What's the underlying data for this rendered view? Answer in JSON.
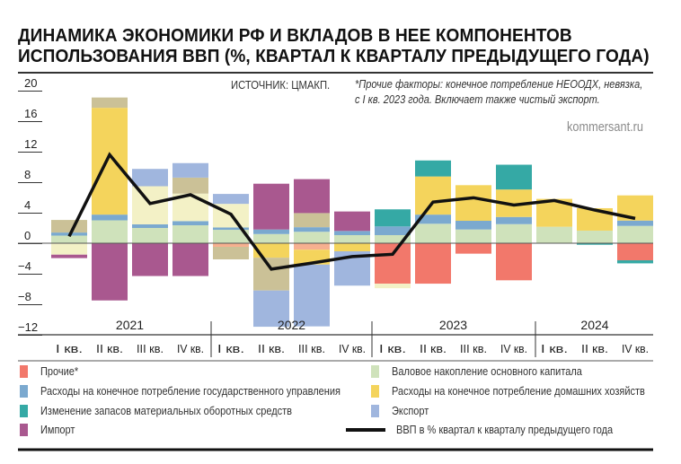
{
  "title": [
    "ДИНАМИКА ЭКОНОМИКИ РФ И ВКЛАДОВ В НЕЕ КОМПОНЕНТОВ",
    "ИСПОЛЬЗОВАНИЯ ВВП (%, КВАРТАЛ К КВАРТАЛУ ПРЕДЫДУЩЕГО ГОДА)"
  ],
  "source": "ИСТОЧНИК: ЦМАКП.",
  "note": [
    "*Прочие факторы: конечное потребление НЕООДХ, невязка,",
    "с I кв. 2023 года. Включает также чистый экспорт."
  ],
  "brand": "kommersant.ru",
  "chart_data": {
    "type": "bar",
    "stacked": true,
    "ylim": [
      -12,
      20
    ],
    "yticks": [
      "20",
      "16",
      "12",
      "8",
      "4",
      "0",
      "−4",
      "−8",
      "−12"
    ],
    "ytick_values": [
      20,
      16,
      12,
      8,
      4,
      0,
      -4,
      -8,
      -12
    ],
    "years": [
      "2021",
      "2022",
      "2023",
      "2024"
    ],
    "categories": [
      "I кв.",
      "II кв.",
      "III кв.",
      "IV кв.",
      "I кв.",
      "II кв.",
      "III кв.",
      "IV кв.",
      "I кв.",
      "II кв.",
      "III кв.",
      "IV кв.",
      "I кв.",
      "II кв.",
      "IV кв."
    ],
    "year_of_category": [
      0,
      0,
      0,
      0,
      1,
      1,
      1,
      1,
      2,
      2,
      2,
      2,
      3,
      3,
      3
    ],
    "series": {
      "other": {
        "name": "Прочие*",
        "color": "#f2786b"
      },
      "gov": {
        "name": "Расходы на конечное потребление государственного управления",
        "color": "#7ba9cf"
      },
      "inventories": {
        "name": "Изменение запасов материальных оборотных средств",
        "color": "#35a9a5"
      },
      "imports": {
        "name": "Импорт",
        "color": "#a9588f"
      },
      "gfcf": {
        "name": "Валовое накопление основного капитала",
        "color": "#cfe2bb"
      },
      "households": {
        "name": "Расходы на конечное потребление домашних хозяйств",
        "color": "#f4d45c"
      },
      "exports": {
        "name": "Экспорт",
        "color": "#a0b6de"
      }
    },
    "unlabeled_colors": {
      "khaki": "#cbc197",
      "cream": "#f3f1c6",
      "peach": "#f6b08f"
    },
    "legend_order": [
      "other",
      "gfcf",
      "gov",
      "households",
      "inventories",
      "exports",
      "imports"
    ],
    "line": {
      "name": "ВВП в % квартал к кварталу предыдущего года",
      "color": "#111111",
      "values": [
        0.9,
        11.6,
        5.2,
        6.35,
        3.8,
        -3.4,
        -2.6,
        -1.75,
        -1.45,
        5.4,
        5.96,
        5.0,
        5.6,
        4.35,
        3.25
      ]
    },
    "bars": [
      [
        {
          "s": "gfcf",
          "v": 1.0
        },
        {
          "s": "gov",
          "v": 0.4
        },
        {
          "s": "khaki",
          "v": 1.65
        },
        {
          "s": "cream",
          "v": -1.5
        },
        {
          "s": "imports",
          "v": -0.45
        }
      ],
      [
        {
          "s": "gfcf",
          "v": 3.0
        },
        {
          "s": "gov",
          "v": 0.75
        },
        {
          "s": "households",
          "v": 14.0
        },
        {
          "s": "khaki",
          "v": 1.35
        },
        {
          "s": "imports",
          "v": -7.5
        }
      ],
      [
        {
          "s": "gfcf",
          "v": 2.0
        },
        {
          "s": "gov",
          "v": 0.47
        },
        {
          "s": "cream",
          "v": 5.0
        },
        {
          "s": "exports",
          "v": 2.27
        },
        {
          "s": "imports",
          "v": -4.3
        }
      ],
      [
        {
          "s": "gfcf",
          "v": 2.35
        },
        {
          "s": "gov",
          "v": 0.55
        },
        {
          "s": "cream",
          "v": 3.6
        },
        {
          "s": "khaki",
          "v": 2.1
        },
        {
          "s": "exports",
          "v": 1.9
        },
        {
          "s": "imports",
          "v": -4.3
        }
      ],
      [
        {
          "s": "gfcf",
          "v": 1.76
        },
        {
          "s": "gov",
          "v": 0.3
        },
        {
          "s": "cream",
          "v": 3.1
        },
        {
          "s": "exports",
          "v": 1.3
        },
        {
          "s": "peach",
          "v": -0.47
        },
        {
          "s": "khaki",
          "v": -1.65
        }
      ],
      [
        {
          "s": "gfcf",
          "v": 1.2
        },
        {
          "s": "gov",
          "v": 0.6
        },
        {
          "s": "imports",
          "v": 6.0
        },
        {
          "s": "households",
          "v": -1.9
        },
        {
          "s": "khaki",
          "v": -4.3
        },
        {
          "s": "exports",
          "v": -4.75
        }
      ],
      [
        {
          "s": "gfcf",
          "v": 1.5
        },
        {
          "s": "gov",
          "v": 0.6
        },
        {
          "s": "khaki",
          "v": 1.85
        },
        {
          "s": "imports",
          "v": 4.45
        },
        {
          "s": "peach",
          "v": -0.85
        },
        {
          "s": "households",
          "v": -1.95
        },
        {
          "s": "exports",
          "v": -8.1
        }
      ],
      [
        {
          "s": "gfcf",
          "v": 1.06
        },
        {
          "s": "gov",
          "v": 0.55
        },
        {
          "s": "imports",
          "v": 2.55
        },
        {
          "s": "households",
          "v": -1.06
        },
        {
          "s": "exports",
          "v": -4.5
        }
      ],
      [
        {
          "s": "gfcf",
          "v": 1.06
        },
        {
          "s": "gov",
          "v": 1.14
        },
        {
          "s": "inventories",
          "v": 2.24
        },
        {
          "s": "other",
          "v": -5.3
        },
        {
          "s": "cream",
          "v": -0.6
        }
      ],
      [
        {
          "s": "gfcf",
          "v": 2.55
        },
        {
          "s": "gov",
          "v": 1.2
        },
        {
          "s": "households",
          "v": 5.0
        },
        {
          "s": "inventories",
          "v": 2.1
        },
        {
          "s": "other",
          "v": -5.3
        }
      ],
      [
        {
          "s": "gfcf",
          "v": 1.8
        },
        {
          "s": "gov",
          "v": 1.14
        },
        {
          "s": "households",
          "v": 4.67
        },
        {
          "s": "other",
          "v": -1.37
        }
      ],
      [
        {
          "s": "gfcf",
          "v": 2.5
        },
        {
          "s": "gov",
          "v": 0.94
        },
        {
          "s": "households",
          "v": 3.6
        },
        {
          "s": "inventories",
          "v": 3.25
        },
        {
          "s": "other",
          "v": -4.86
        }
      ],
      [
        {
          "s": "gfcf",
          "v": 2.16
        },
        {
          "s": "households",
          "v": 3.65
        }
      ],
      [
        {
          "s": "gfcf",
          "v": 1.65
        },
        {
          "s": "households",
          "v": 2.94
        },
        {
          "s": "inventories",
          "v": -0.2
        }
      ],
      [
        {
          "s": "gfcf",
          "v": 2.27
        },
        {
          "s": "gov",
          "v": 0.7
        },
        {
          "s": "households",
          "v": 3.3
        },
        {
          "s": "other",
          "v": -2.24
        },
        {
          "s": "inventories",
          "v": -0.4
        }
      ]
    ]
  }
}
